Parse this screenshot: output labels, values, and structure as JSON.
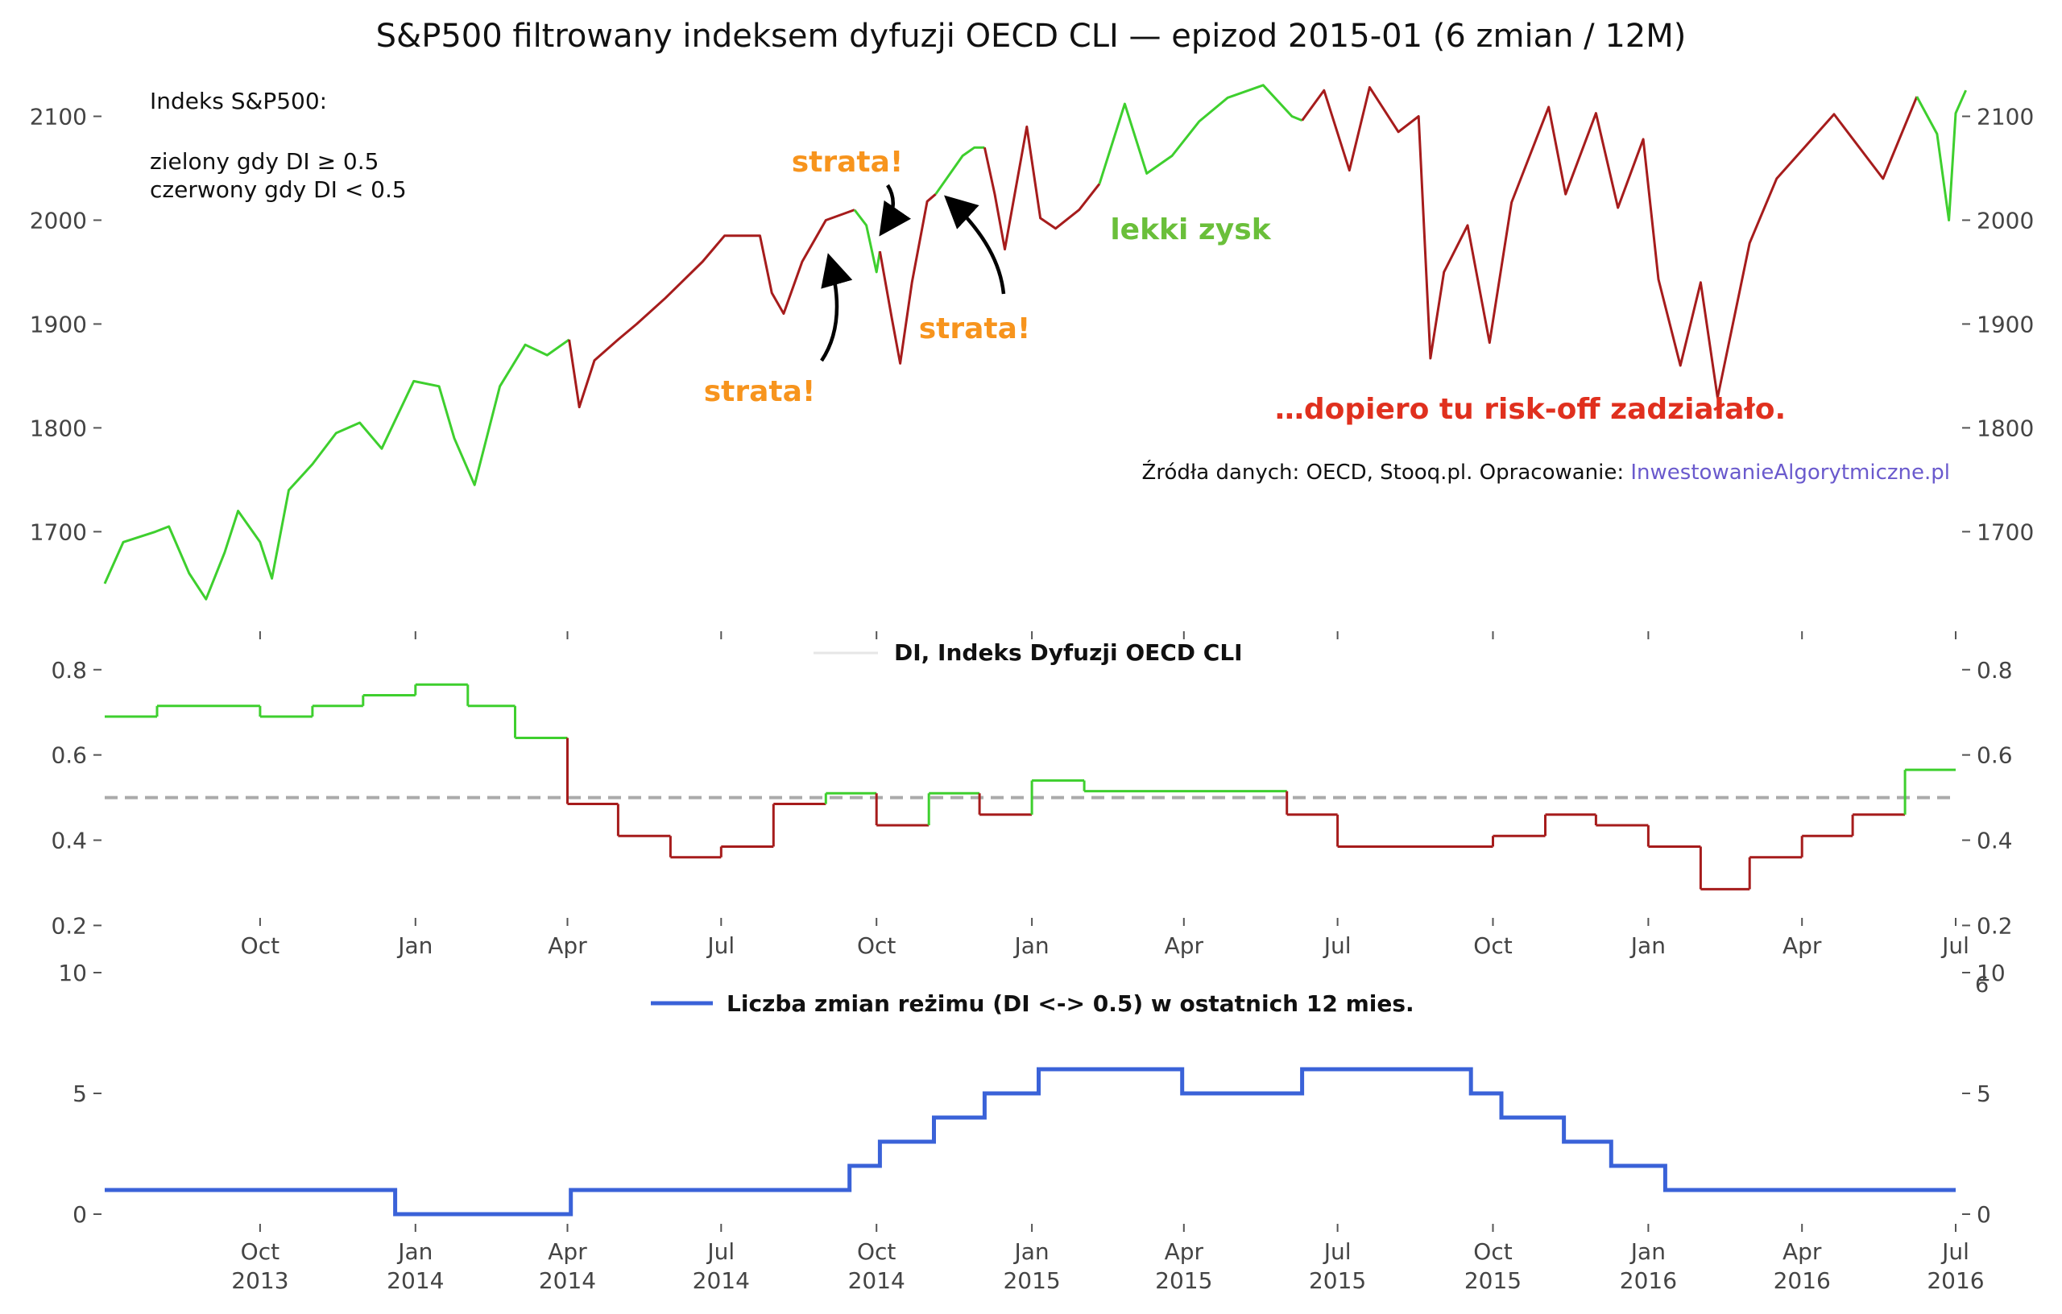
{
  "figure": {
    "title": "S&P500 filtrowany indeksem dyfuzji OECD CLI — epizod 2015-01 (6 zmian / 12M)",
    "source_prefix": "Źródła danych: OECD, Stooq.pl. Opracowanie: ",
    "source_link": "InwestowanieAlgorytmiczne.pl",
    "colors": {
      "green": "#3ecf2e",
      "red": "#a61c1c",
      "blue": "#3a62d8",
      "threshold": "#aaaaaa",
      "annotation_orange": "#f7941d",
      "annotation_green": "#6abf3a",
      "annotation_red": "#e0301e",
      "link": "#6a5acd"
    }
  },
  "chart_data": [
    {
      "type": "line",
      "panel": "S&P500 price colored by DI regime",
      "legend_lines": [
        "Indeks S&P500:",
        "",
        "zielony gdy DI ≥ 0.5",
        "czerwony gdy DI < 0.5"
      ],
      "ylim": [
        1615,
        2150
      ],
      "yticks": [
        1700,
        1800,
        1900,
        2000,
        2100
      ],
      "date_range": [
        "2013-07-01",
        "2016-07-01"
      ],
      "series": [
        {
          "points": [
            [
              "2013-07-01",
              1650
            ],
            [
              "2013-07-12",
              1690
            ],
            [
              "2013-07-31",
              1700
            ],
            [
              "2013-08-08",
              1705
            ],
            [
              "2013-08-20",
              1660
            ],
            [
              "2013-08-30",
              1635
            ],
            [
              "2013-09-10",
              1680
            ],
            [
              "2013-09-18",
              1720
            ],
            [
              "2013-10-01",
              1690
            ],
            [
              "2013-10-08",
              1655
            ],
            [
              "2013-10-18",
              1740
            ],
            [
              "2013-11-01",
              1765
            ],
            [
              "2013-11-15",
              1795
            ],
            [
              "2013-11-29",
              1805
            ],
            [
              "2013-12-12",
              1780
            ],
            [
              "2013-12-31",
              1845
            ],
            [
              "2014-01-15",
              1840
            ],
            [
              "2014-01-24",
              1790
            ],
            [
              "2014-02-05",
              1745
            ],
            [
              "2014-02-20",
              1840
            ],
            [
              "2014-03-07",
              1880
            ],
            [
              "2014-03-20",
              1870
            ],
            [
              "2014-04-02",
              1885
            ]
          ],
          "regime": "green"
        },
        {
          "points": [
            [
              "2014-04-02",
              1885
            ],
            [
              "2014-04-08",
              1820
            ],
            [
              "2014-04-17",
              1865
            ],
            [
              "2014-05-01",
              1885
            ],
            [
              "2014-05-12",
              1900
            ],
            [
              "2014-05-29",
              1925
            ],
            [
              "2014-06-20",
              1960
            ],
            [
              "2014-07-03",
              1985
            ],
            [
              "2014-07-24",
              1985
            ],
            [
              "2014-07-31",
              1930
            ],
            [
              "2014-08-07",
              1910
            ],
            [
              "2014-08-18",
              1960
            ],
            [
              "2014-09-01",
              2000
            ],
            [
              "2014-09-18",
              2010
            ]
          ],
          "regime": "red"
        },
        {
          "points": [
            [
              "2014-09-18",
              2010
            ],
            [
              "2014-09-25",
              1995
            ],
            [
              "2014-10-01",
              1950
            ],
            [
              "2014-10-03",
              1970
            ]
          ],
          "regime": "green"
        },
        {
          "points": [
            [
              "2014-10-03",
              1970
            ],
            [
              "2014-10-10",
              1906
            ],
            [
              "2014-10-15",
              1862
            ],
            [
              "2014-10-22",
              1940
            ],
            [
              "2014-10-31",
              2018
            ],
            [
              "2014-11-05",
              2025
            ]
          ],
          "regime": "red"
        },
        {
          "points": [
            [
              "2014-11-05",
              2025
            ],
            [
              "2014-11-21",
              2062
            ],
            [
              "2014-11-28",
              2070
            ],
            [
              "2014-12-04",
              2070
            ]
          ],
          "regime": "green"
        },
        {
          "points": [
            [
              "2014-12-04",
              2070
            ],
            [
              "2014-12-10",
              2025
            ],
            [
              "2014-12-16",
              1972
            ],
            [
              "2014-12-29",
              2090
            ],
            [
              "2015-01-06",
              2002
            ],
            [
              "2015-01-15",
              1992
            ],
            [
              "2015-01-29",
              2010
            ],
            [
              "2015-02-10",
              2035
            ]
          ],
          "regime": "red"
        },
        {
          "points": [
            [
              "2015-02-10",
              2035
            ],
            [
              "2015-02-25",
              2112
            ],
            [
              "2015-03-10",
              2045
            ],
            [
              "2015-03-25",
              2062
            ],
            [
              "2015-04-10",
              2095
            ],
            [
              "2015-04-27",
              2118
            ],
            [
              "2015-05-18",
              2130
            ],
            [
              "2015-06-04",
              2100
            ],
            [
              "2015-06-10",
              2096
            ]
          ],
          "regime": "green"
        },
        {
          "points": [
            [
              "2015-06-10",
              2096
            ],
            [
              "2015-06-23",
              2125
            ],
            [
              "2015-07-08",
              2048
            ],
            [
              "2015-07-20",
              2128
            ],
            [
              "2015-08-06",
              2085
            ],
            [
              "2015-08-18",
              2100
            ],
            [
              "2015-08-25",
              1867
            ],
            [
              "2015-09-02",
              1950
            ],
            [
              "2015-09-16",
              1995
            ],
            [
              "2015-09-29",
              1882
            ],
            [
              "2015-10-12",
              2017
            ],
            [
              "2015-11-03",
              2109
            ],
            [
              "2015-11-13",
              2025
            ],
            [
              "2015-12-01",
              2103
            ],
            [
              "2015-12-14",
              2012
            ],
            [
              "2015-12-29",
              2078
            ],
            [
              "2016-01-07",
              1943
            ],
            [
              "2016-01-20",
              1860
            ],
            [
              "2016-02-01",
              1940
            ],
            [
              "2016-02-11",
              1829
            ],
            [
              "2016-03-01",
              1978
            ],
            [
              "2016-03-17",
              2040
            ],
            [
              "2016-04-20",
              2102
            ],
            [
              "2016-05-19",
              2040
            ],
            [
              "2016-06-08",
              2119
            ]
          ],
          "regime": "red"
        },
        {
          "points": [
            [
              "2016-06-08",
              2119
            ],
            [
              "2016-06-20",
              2083
            ],
            [
              "2016-06-27",
              2000
            ],
            [
              "2016-07-01",
              2103
            ],
            [
              "2016-07-07",
              2125
            ]
          ],
          "regime": "green"
        }
      ]
    },
    {
      "type": "line",
      "title": "DI, Indeks Dyfuzji OECD CLI",
      "ylim": [
        0.18,
        0.86
      ],
      "yticks": [
        0.2,
        0.4,
        0.6,
        0.8
      ],
      "threshold": 0.5,
      "steps": [
        [
          "2013-07-01",
          0.69
        ],
        [
          "2013-08-01",
          0.715
        ],
        [
          "2013-10-01",
          0.69
        ],
        [
          "2013-11-01",
          0.715
        ],
        [
          "2013-12-01",
          0.74
        ],
        [
          "2014-01-01",
          0.765
        ],
        [
          "2014-02-01",
          0.715
        ],
        [
          "2014-03-01",
          0.715
        ],
        [
          "2014-03-01",
          0.64
        ],
        [
          "2014-04-01",
          0.485
        ],
        [
          "2014-05-01",
          0.41
        ],
        [
          "2014-06-01",
          0.36
        ],
        [
          "2014-07-01",
          0.385
        ],
        [
          "2014-08-01",
          0.485
        ],
        [
          "2014-09-01",
          0.51
        ],
        [
          "2014-10-01",
          0.435
        ],
        [
          "2014-11-01",
          0.51
        ],
        [
          "2014-12-01",
          0.46
        ],
        [
          "2015-01-01",
          0.54
        ],
        [
          "2015-02-01",
          0.515
        ],
        [
          "2015-06-01",
          0.46
        ],
        [
          "2015-07-01",
          0.385
        ],
        [
          "2015-10-01",
          0.41
        ],
        [
          "2015-11-01",
          0.46
        ],
        [
          "2015-12-01",
          0.435
        ],
        [
          "2016-01-01",
          0.385
        ],
        [
          "2016-02-01",
          0.285
        ],
        [
          "2016-03-01",
          0.36
        ],
        [
          "2016-04-01",
          0.41
        ],
        [
          "2016-05-01",
          0.46
        ],
        [
          "2016-06-01",
          0.565
        ]
      ],
      "end_date": "2016-07-01"
    },
    {
      "type": "line",
      "series": [
        {
          "name": "Liczba zmian reżimu (DI <-> 0.5) w ostatnich 12 mies.",
          "steps": [
            [
              "2013-07-01",
              1
            ],
            [
              "2013-12-20",
              0
            ],
            [
              "2014-04-03",
              1
            ],
            [
              "2014-09-15",
              2
            ],
            [
              "2014-10-03",
              3
            ],
            [
              "2014-11-04",
              4
            ],
            [
              "2014-12-04",
              5
            ],
            [
              "2015-01-05",
              6
            ],
            [
              "2015-03-31",
              5
            ],
            [
              "2015-06-10",
              6
            ],
            [
              "2015-09-18",
              5
            ],
            [
              "2015-10-06",
              4
            ],
            [
              "2015-11-12",
              3
            ],
            [
              "2015-12-10",
              2
            ],
            [
              "2016-01-11",
              1
            ]
          ],
          "end_date": "2016-07-01"
        }
      ],
      "ylim": [
        -0.9,
        10
      ],
      "yticks": [
        0,
        5,
        10
      ],
      "x_ticks": [
        {
          "month": "Oct",
          "year": "2013",
          "date": "2013-10-01"
        },
        {
          "month": "Jan",
          "year": "2014",
          "date": "2014-01-01"
        },
        {
          "month": "Apr",
          "year": "2014",
          "date": "2014-04-01"
        },
        {
          "month": "Jul",
          "year": "2014",
          "date": "2014-07-01"
        },
        {
          "month": "Oct",
          "year": "2014",
          "date": "2014-10-01"
        },
        {
          "month": "Jan",
          "year": "2015",
          "date": "2015-01-01"
        },
        {
          "month": "Apr",
          "year": "2015",
          "date": "2015-04-01"
        },
        {
          "month": "Jul",
          "year": "2015",
          "date": "2015-07-01"
        },
        {
          "month": "Oct",
          "year": "2015",
          "date": "2015-10-01"
        },
        {
          "month": "Jan",
          "year": "2016",
          "date": "2016-01-01"
        },
        {
          "month": "Apr",
          "year": "2016",
          "date": "2016-04-01"
        },
        {
          "month": "Jul",
          "year": "2016",
          "date": "2016-07-01"
        }
      ],
      "right_axis_extra": "6"
    }
  ],
  "annotations": [
    {
      "text": "strata!",
      "color": "annotation_orange",
      "kind": "strata-top"
    },
    {
      "text": "strata!",
      "color": "annotation_orange",
      "kind": "strata-mid"
    },
    {
      "text": "strata!",
      "color": "annotation_orange",
      "kind": "strata-bottom"
    },
    {
      "text": "lekki zysk",
      "color": "annotation_green",
      "kind": "gain"
    },
    {
      "text": "…dopiero tu risk-off zadziałało.",
      "color": "annotation_red",
      "kind": "riskoff"
    }
  ]
}
